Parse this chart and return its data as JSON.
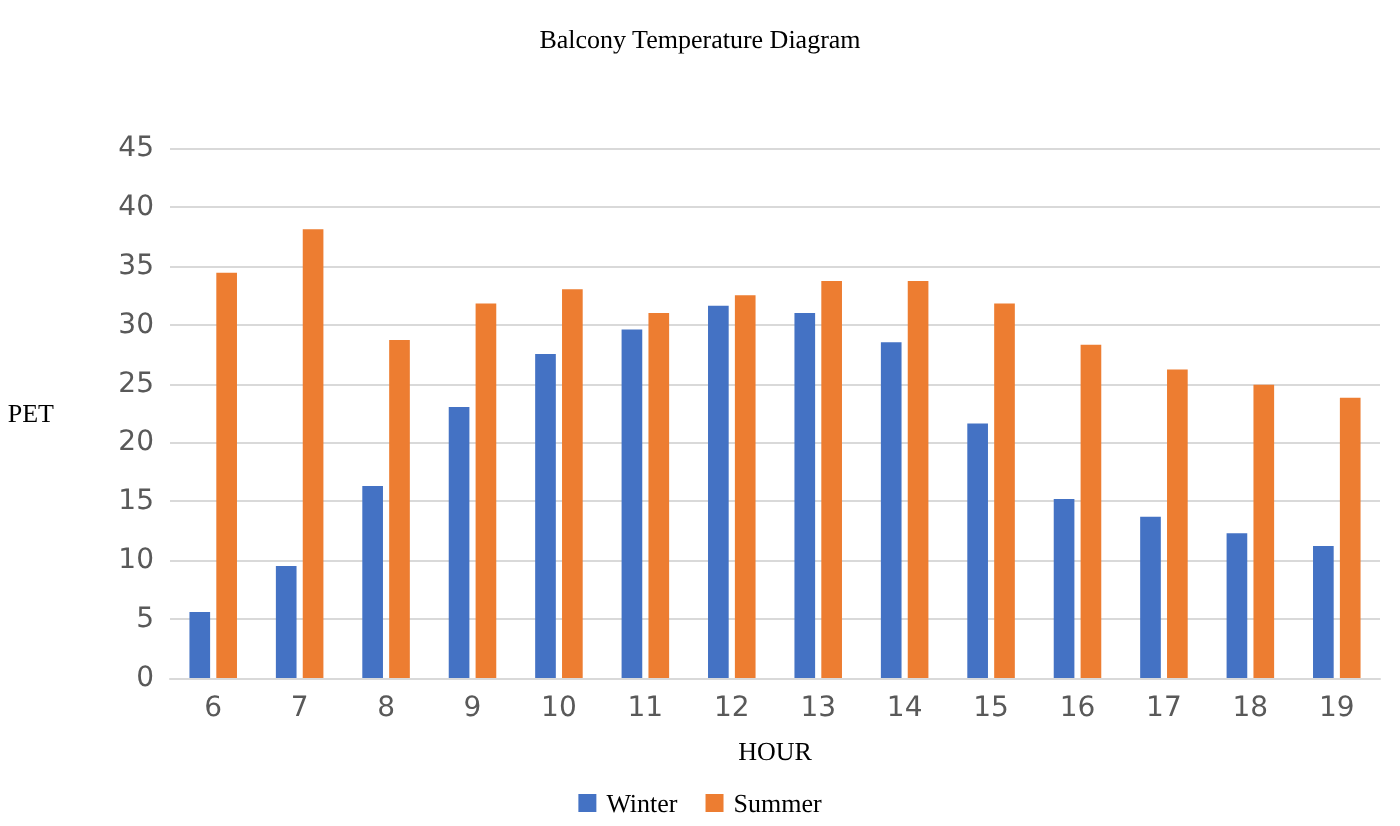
{
  "chart_data": {
    "type": "bar",
    "title": "Balcony Temperature Diagram",
    "xlabel": "HOUR",
    "ylabel": "PET",
    "categories": [
      "6",
      "7",
      "8",
      "9",
      "10",
      "11",
      "12",
      "13",
      "14",
      "15",
      "16",
      "17",
      "18",
      "19"
    ],
    "series": [
      {
        "name": "Winter",
        "color": "#4472c4",
        "values": [
          5.6,
          9.5,
          16.3,
          23.0,
          27.5,
          29.6,
          31.6,
          31.0,
          28.5,
          21.6,
          15.2,
          13.7,
          12.3,
          11.2
        ]
      },
      {
        "name": "Summer",
        "color": "#ed7d31",
        "values": [
          34.4,
          38.1,
          28.7,
          31.8,
          33.0,
          31.0,
          32.5,
          33.7,
          33.7,
          31.8,
          28.3,
          26.2,
          24.9,
          23.8
        ]
      }
    ],
    "ylim": [
      0,
      45
    ],
    "yticks": [
      0,
      5,
      10,
      15,
      20,
      25,
      30,
      35,
      40,
      45
    ],
    "grid": "y",
    "legend": "bottom"
  }
}
